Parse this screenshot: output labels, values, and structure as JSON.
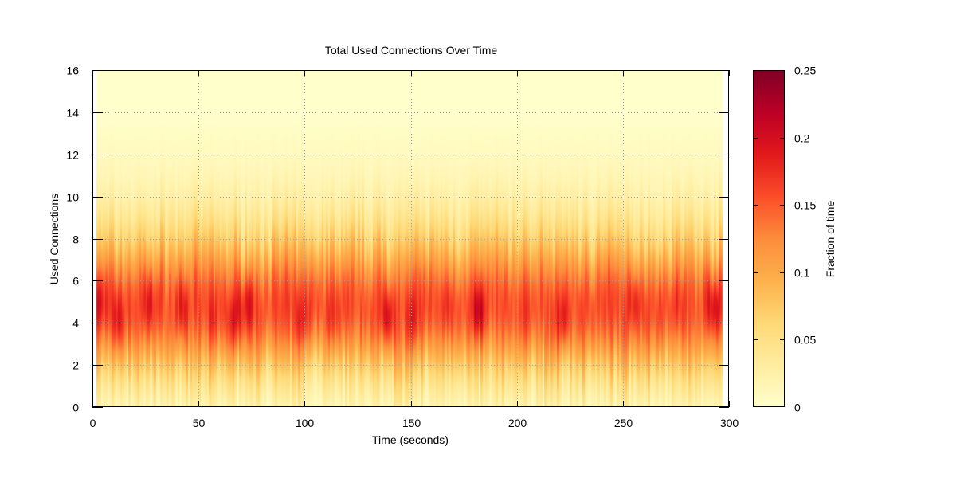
{
  "chart_data": {
    "type": "heatmap",
    "title": "Total Used Connections Over Time",
    "xlabel": "Time (seconds)",
    "ylabel": "Used Connections",
    "colorbar_label": "Fraction of time",
    "xlim": [
      0,
      300
    ],
    "ylim": [
      0,
      16
    ],
    "clim": [
      0,
      0.25
    ],
    "x_ticks": [
      "0",
      "50",
      "100",
      "150",
      "200",
      "250",
      "300"
    ],
    "y_ticks": [
      "0",
      "2",
      "4",
      "6",
      "8",
      "10",
      "12",
      "14",
      "16"
    ],
    "colorbar_ticks": [
      "0",
      "0.05",
      "0.1",
      "0.15",
      "0.2",
      "0.25"
    ],
    "colormap": [
      "#ffffcc",
      "#ffeda0",
      "#fed976",
      "#feb24c",
      "#fd8d3c",
      "#fc4e2a",
      "#e31a1c",
      "#bd0026",
      "#800026"
    ],
    "grid": true,
    "data_x_range": [
      2,
      297
    ],
    "distribution_summary": {
      "peak_connections": 4.5,
      "typical_peak_fraction": 0.18,
      "max_fraction": 0.21,
      "spread_y": [
        0,
        13
      ]
    },
    "hotspots": [
      {
        "t": 3,
        "y": 5,
        "value": 0.19
      },
      {
        "t": 12,
        "y": 4,
        "value": 0.18
      },
      {
        "t": 27,
        "y": 5,
        "value": 0.18
      },
      {
        "t": 43,
        "y": 4.7,
        "value": 0.18
      },
      {
        "t": 57,
        "y": 4,
        "value": 0.17
      },
      {
        "t": 67,
        "y": 4,
        "value": 0.19
      },
      {
        "t": 73,
        "y": 5,
        "value": 0.19
      },
      {
        "t": 99,
        "y": 4,
        "value": 0.18
      },
      {
        "t": 113,
        "y": 4,
        "value": 0.17
      },
      {
        "t": 139,
        "y": 4.2,
        "value": 0.2
      },
      {
        "t": 151,
        "y": 4,
        "value": 0.18
      },
      {
        "t": 167,
        "y": 4.8,
        "value": 0.17
      },
      {
        "t": 182,
        "y": 4.5,
        "value": 0.21
      },
      {
        "t": 205,
        "y": 4,
        "value": 0.16
      },
      {
        "t": 222,
        "y": 4,
        "value": 0.19
      },
      {
        "t": 240,
        "y": 6,
        "value": 0.15
      },
      {
        "t": 256,
        "y": 5,
        "value": 0.18
      },
      {
        "t": 275,
        "y": 4.8,
        "value": 0.17
      },
      {
        "t": 293,
        "y": 4.8,
        "value": 0.2
      }
    ]
  }
}
